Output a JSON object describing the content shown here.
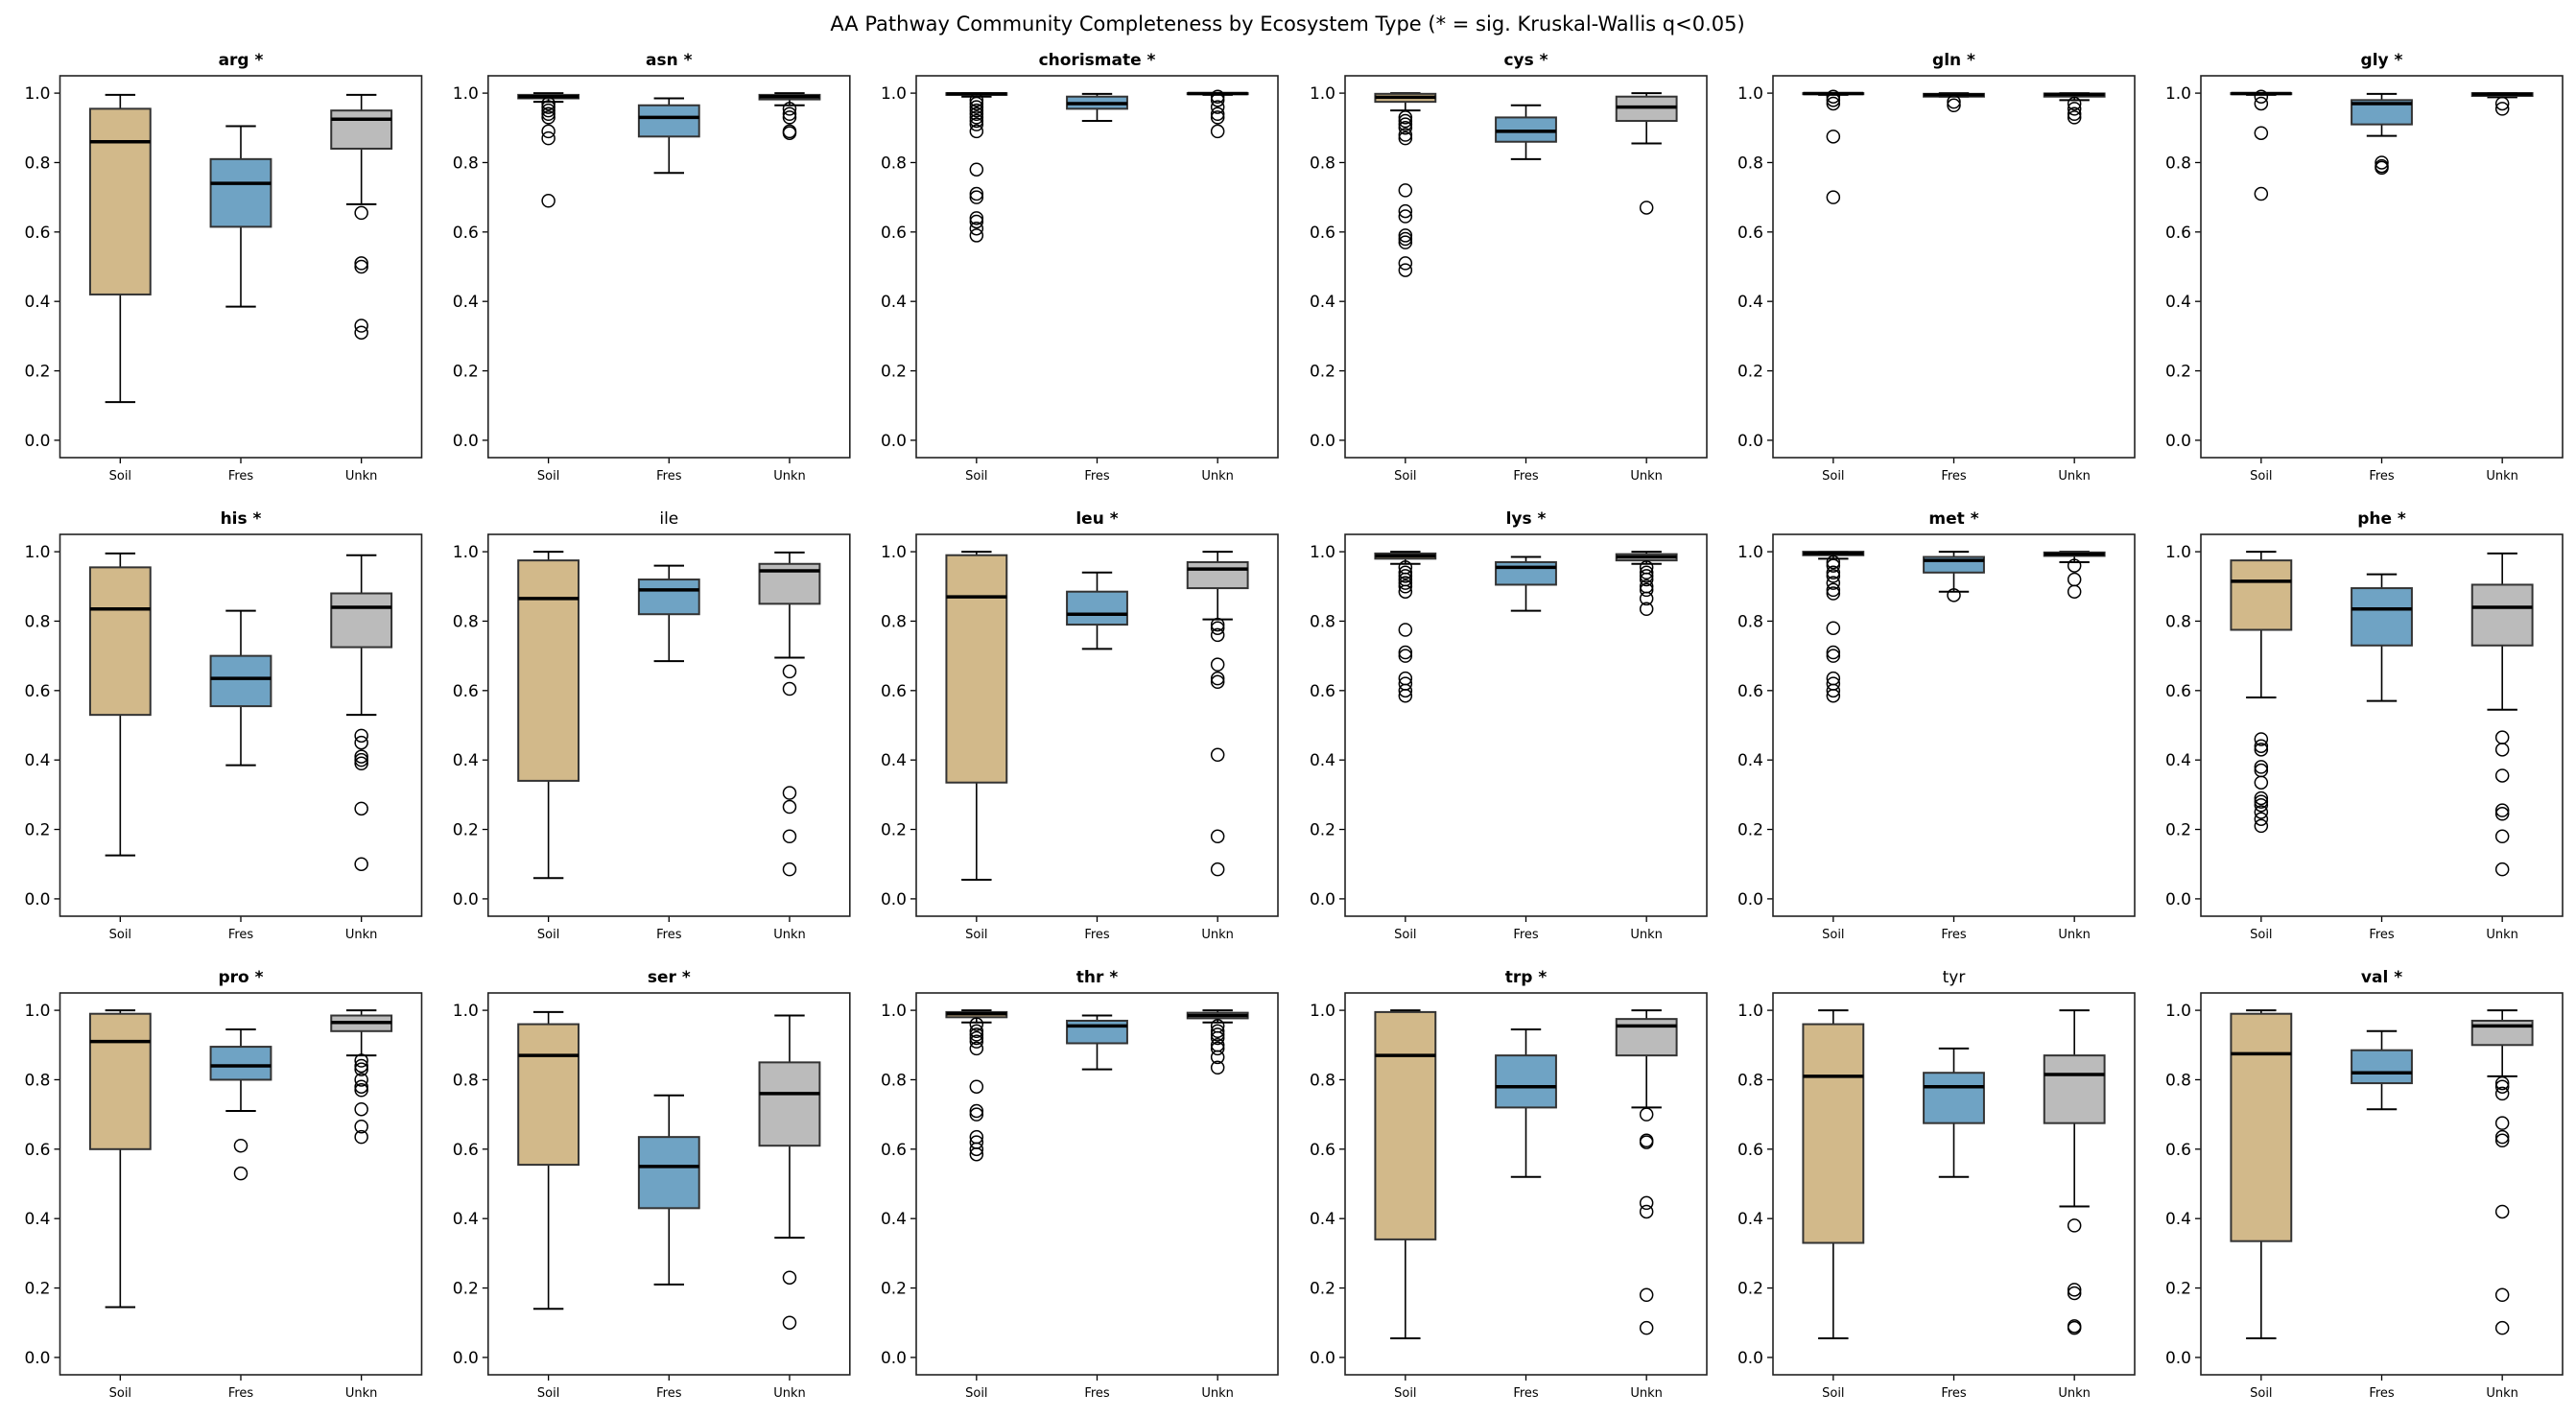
{
  "chart_data": {
    "type": "box",
    "title": "AA Pathway Community Completeness by Ecosystem Type (* = sig. Kruskal-Wallis q<0.05)",
    "categories": [
      "Soil",
      "Fres",
      "Unkn"
    ],
    "colors": [
      "#D2B98A",
      "#6FA3C4",
      "#BBBBBB"
    ],
    "ylim": [
      -0.05,
      1.05
    ],
    "yticks": [
      "0.0",
      "0.2",
      "0.4",
      "0.6",
      "0.8",
      "1.0"
    ],
    "grid": false,
    "panels": [
      {
        "title": "arg *",
        "significant": true,
        "groups": [
          {
            "whislo": 0.11,
            "q1": 0.42,
            "med": 0.86,
            "q3": 0.955,
            "whishi": 0.995,
            "fliers": []
          },
          {
            "whislo": 0.385,
            "q1": 0.615,
            "med": 0.74,
            "q3": 0.81,
            "whishi": 0.905,
            "fliers": []
          },
          {
            "whislo": 0.68,
            "q1": 0.84,
            "med": 0.925,
            "q3": 0.95,
            "whishi": 0.995,
            "fliers": [
              0.655,
              0.51,
              0.5,
              0.33,
              0.31
            ]
          }
        ]
      },
      {
        "title": "asn *",
        "significant": true,
        "groups": [
          {
            "whislo": 0.975,
            "q1": 0.985,
            "med": 0.99,
            "q3": 0.995,
            "whishi": 1.0,
            "fliers": [
              0.97,
              0.96,
              0.95,
              0.94,
              0.93,
              0.89,
              0.87,
              0.69
            ]
          },
          {
            "whislo": 0.77,
            "q1": 0.875,
            "med": 0.93,
            "q3": 0.965,
            "whishi": 0.985,
            "fliers": []
          },
          {
            "whislo": 0.965,
            "q1": 0.982,
            "med": 0.99,
            "q3": 0.995,
            "whishi": 1.0,
            "fliers": [
              0.955,
              0.94,
              0.93,
              0.89,
              0.885
            ]
          }
        ]
      },
      {
        "title": "chorismate *",
        "significant": true,
        "groups": [
          {
            "whislo": 0.99,
            "q1": 0.995,
            "med": 0.998,
            "q3": 1.0,
            "whishi": 1.0,
            "fliers": [
              0.98,
              0.97,
              0.96,
              0.95,
              0.94,
              0.93,
              0.92,
              0.91,
              0.89,
              0.78,
              0.71,
              0.7,
              0.64,
              0.63,
              0.61,
              0.59
            ]
          },
          {
            "whislo": 0.92,
            "q1": 0.955,
            "med": 0.97,
            "q3": 0.99,
            "whishi": 0.998,
            "fliers": []
          },
          {
            "whislo": 0.995,
            "q1": 0.997,
            "med": 0.999,
            "q3": 1.0,
            "whishi": 1.0,
            "fliers": [
              0.99,
              0.98,
              0.96,
              0.94,
              0.93,
              0.89
            ]
          }
        ]
      },
      {
        "title": "cys *",
        "significant": true,
        "groups": [
          {
            "whislo": 0.95,
            "q1": 0.975,
            "med": 0.988,
            "q3": 0.998,
            "whishi": 1.0,
            "fliers": [
              0.93,
              0.92,
              0.91,
              0.9,
              0.88,
              0.87,
              0.72,
              0.66,
              0.645,
              0.59,
              0.58,
              0.57,
              0.51,
              0.49
            ]
          },
          {
            "whislo": 0.81,
            "q1": 0.86,
            "med": 0.89,
            "q3": 0.93,
            "whishi": 0.965,
            "fliers": []
          },
          {
            "whislo": 0.855,
            "q1": 0.92,
            "med": 0.96,
            "q3": 0.99,
            "whishi": 1.0,
            "fliers": [
              0.67
            ]
          }
        ]
      },
      {
        "title": "gln *",
        "significant": true,
        "groups": [
          {
            "whislo": 0.995,
            "q1": 0.997,
            "med": 0.999,
            "q3": 1.0,
            "whishi": 1.0,
            "fliers": [
              0.99,
              0.98,
              0.97,
              0.875,
              0.7
            ]
          },
          {
            "whislo": 0.99,
            "q1": 0.99,
            "med": 0.995,
            "q3": 0.998,
            "whishi": 1.0,
            "fliers": [
              0.975,
              0.965
            ]
          },
          {
            "whislo": 0.98,
            "q1": 0.99,
            "med": 0.996,
            "q3": 0.999,
            "whishi": 1.0,
            "fliers": [
              0.97,
              0.955,
              0.94,
              0.93
            ]
          }
        ]
      },
      {
        "title": "gly *",
        "significant": true,
        "groups": [
          {
            "whislo": 0.995,
            "q1": 0.997,
            "med": 0.999,
            "q3": 1.0,
            "whishi": 1.0,
            "fliers": [
              0.99,
              0.97,
              0.885,
              0.71
            ]
          },
          {
            "whislo": 0.877,
            "q1": 0.91,
            "med": 0.97,
            "q3": 0.98,
            "whishi": 0.998,
            "fliers": [
              0.8,
              0.79,
              0.785
            ]
          },
          {
            "whislo": 0.988,
            "q1": 0.992,
            "med": 0.997,
            "q3": 1.0,
            "whishi": 1.0,
            "fliers": [
              0.97,
              0.955
            ]
          }
        ]
      },
      {
        "title": "his *",
        "significant": true,
        "groups": [
          {
            "whislo": 0.125,
            "q1": 0.53,
            "med": 0.835,
            "q3": 0.955,
            "whishi": 0.995,
            "fliers": []
          },
          {
            "whislo": 0.385,
            "q1": 0.555,
            "med": 0.635,
            "q3": 0.7,
            "whishi": 0.83,
            "fliers": []
          },
          {
            "whislo": 0.53,
            "q1": 0.725,
            "med": 0.84,
            "q3": 0.88,
            "whishi": 0.99,
            "fliers": [
              0.47,
              0.45,
              0.41,
              0.4,
              0.39,
              0.26,
              0.1
            ]
          }
        ]
      },
      {
        "title": "ile",
        "significant": false,
        "groups": [
          {
            "whislo": 0.06,
            "q1": 0.34,
            "med": 0.865,
            "q3": 0.975,
            "whishi": 1.0,
            "fliers": []
          },
          {
            "whislo": 0.685,
            "q1": 0.82,
            "med": 0.89,
            "q3": 0.92,
            "whishi": 0.96,
            "fliers": []
          },
          {
            "whislo": 0.695,
            "q1": 0.85,
            "med": 0.945,
            "q3": 0.965,
            "whishi": 0.998,
            "fliers": [
              0.655,
              0.605,
              0.305,
              0.265,
              0.18,
              0.085
            ]
          }
        ]
      },
      {
        "title": "leu *",
        "significant": true,
        "groups": [
          {
            "whislo": 0.055,
            "q1": 0.335,
            "med": 0.87,
            "q3": 0.99,
            "whishi": 1.0,
            "fliers": []
          },
          {
            "whislo": 0.72,
            "q1": 0.79,
            "med": 0.82,
            "q3": 0.885,
            "whishi": 0.94,
            "fliers": []
          },
          {
            "whislo": 0.805,
            "q1": 0.895,
            "med": 0.95,
            "q3": 0.97,
            "whishi": 1.0,
            "fliers": [
              0.79,
              0.78,
              0.76,
              0.675,
              0.635,
              0.625,
              0.415,
              0.18,
              0.085
            ]
          }
        ]
      },
      {
        "title": "lys *",
        "significant": true,
        "groups": [
          {
            "whislo": 0.965,
            "q1": 0.98,
            "med": 0.988,
            "q3": 0.995,
            "whishi": 1.0,
            "fliers": [
              0.955,
              0.94,
              0.93,
              0.92,
              0.91,
              0.9,
              0.885,
              0.775,
              0.71,
              0.7,
              0.635,
              0.62,
              0.6,
              0.585
            ]
          },
          {
            "whislo": 0.83,
            "q1": 0.905,
            "med": 0.955,
            "q3": 0.97,
            "whishi": 0.985,
            "fliers": []
          },
          {
            "whislo": 0.965,
            "q1": 0.975,
            "med": 0.985,
            "q3": 0.993,
            "whishi": 1.0,
            "fliers": [
              0.955,
              0.94,
              0.93,
              0.92,
              0.9,
              0.89,
              0.865,
              0.835
            ]
          }
        ]
      },
      {
        "title": "met *",
        "significant": true,
        "groups": [
          {
            "whislo": 0.98,
            "q1": 0.99,
            "med": 0.995,
            "q3": 1.0,
            "whishi": 1.0,
            "fliers": [
              0.97,
              0.96,
              0.94,
              0.93,
              0.91,
              0.89,
              0.88,
              0.78,
              0.71,
              0.7,
              0.635,
              0.62,
              0.6,
              0.585
            ]
          },
          {
            "whislo": 0.885,
            "q1": 0.94,
            "med": 0.975,
            "q3": 0.985,
            "whishi": 1.0,
            "fliers": [
              0.875
            ]
          },
          {
            "whislo": 0.97,
            "q1": 0.988,
            "med": 0.993,
            "q3": 0.998,
            "whishi": 1.0,
            "fliers": [
              0.96,
              0.92,
              0.885
            ]
          }
        ]
      },
      {
        "title": "phe *",
        "significant": true,
        "groups": [
          {
            "whislo": 0.58,
            "q1": 0.775,
            "med": 0.915,
            "q3": 0.975,
            "whishi": 1.0,
            "fliers": [
              0.46,
              0.44,
              0.43,
              0.38,
              0.37,
              0.335,
              0.29,
              0.28,
              0.27,
              0.25,
              0.23,
              0.21
            ]
          },
          {
            "whislo": 0.57,
            "q1": 0.73,
            "med": 0.835,
            "q3": 0.895,
            "whishi": 0.935,
            "fliers": []
          },
          {
            "whislo": 0.545,
            "q1": 0.73,
            "med": 0.84,
            "q3": 0.905,
            "whishi": 0.995,
            "fliers": [
              0.465,
              0.43,
              0.355,
              0.255,
              0.245,
              0.18,
              0.085
            ]
          }
        ]
      },
      {
        "title": "pro *",
        "significant": true,
        "groups": [
          {
            "whislo": 0.145,
            "q1": 0.6,
            "med": 0.91,
            "q3": 0.99,
            "whishi": 1.0,
            "fliers": []
          },
          {
            "whislo": 0.71,
            "q1": 0.8,
            "med": 0.84,
            "q3": 0.895,
            "whishi": 0.945,
            "fliers": [
              0.61,
              0.53
            ]
          },
          {
            "whislo": 0.87,
            "q1": 0.94,
            "med": 0.965,
            "q3": 0.985,
            "whishi": 1.0,
            "fliers": [
              0.855,
              0.84,
              0.83,
              0.8,
              0.78,
              0.77,
              0.715,
              0.665,
              0.635
            ]
          }
        ]
      },
      {
        "title": "ser *",
        "significant": true,
        "groups": [
          {
            "whislo": 0.14,
            "q1": 0.555,
            "med": 0.87,
            "q3": 0.96,
            "whishi": 0.995,
            "fliers": []
          },
          {
            "whislo": 0.21,
            "q1": 0.43,
            "med": 0.55,
            "q3": 0.635,
            "whishi": 0.755,
            "fliers": []
          },
          {
            "whislo": 0.345,
            "q1": 0.61,
            "med": 0.76,
            "q3": 0.85,
            "whishi": 0.985,
            "fliers": [
              0.23,
              0.1
            ]
          }
        ]
      },
      {
        "title": "thr *",
        "significant": true,
        "groups": [
          {
            "whislo": 0.965,
            "q1": 0.98,
            "med": 0.99,
            "q3": 0.995,
            "whishi": 1.0,
            "fliers": [
              0.96,
              0.94,
              0.93,
              0.92,
              0.91,
              0.89,
              0.78,
              0.71,
              0.7,
              0.635,
              0.62,
              0.6,
              0.585
            ]
          },
          {
            "whislo": 0.83,
            "q1": 0.905,
            "med": 0.955,
            "q3": 0.97,
            "whishi": 0.985,
            "fliers": []
          },
          {
            "whislo": 0.965,
            "q1": 0.977,
            "med": 0.985,
            "q3": 0.993,
            "whishi": 1.0,
            "fliers": [
              0.955,
              0.94,
              0.93,
              0.92,
              0.9,
              0.89,
              0.865,
              0.835
            ]
          }
        ]
      },
      {
        "title": "trp *",
        "significant": true,
        "groups": [
          {
            "whislo": 0.055,
            "q1": 0.34,
            "med": 0.87,
            "q3": 0.995,
            "whishi": 1.0,
            "fliers": []
          },
          {
            "whislo": 0.52,
            "q1": 0.72,
            "med": 0.78,
            "q3": 0.87,
            "whishi": 0.945,
            "fliers": []
          },
          {
            "whislo": 0.72,
            "q1": 0.87,
            "med": 0.955,
            "q3": 0.975,
            "whishi": 1.0,
            "fliers": [
              0.7,
              0.625,
              0.62,
              0.445,
              0.42,
              0.18,
              0.085
            ]
          }
        ]
      },
      {
        "title": "tyr",
        "significant": false,
        "groups": [
          {
            "whislo": 0.055,
            "q1": 0.33,
            "med": 0.81,
            "q3": 0.96,
            "whishi": 1.0,
            "fliers": []
          },
          {
            "whislo": 0.52,
            "q1": 0.675,
            "med": 0.78,
            "q3": 0.82,
            "whishi": 0.89,
            "fliers": []
          },
          {
            "whislo": 0.435,
            "q1": 0.675,
            "med": 0.815,
            "q3": 0.87,
            "whishi": 1.0,
            "fliers": [
              0.38,
              0.195,
              0.185,
              0.09,
              0.085
            ]
          }
        ]
      },
      {
        "title": "val *",
        "significant": true,
        "groups": [
          {
            "whislo": 0.055,
            "q1": 0.335,
            "med": 0.875,
            "q3": 0.99,
            "whishi": 1.0,
            "fliers": []
          },
          {
            "whislo": 0.715,
            "q1": 0.79,
            "med": 0.82,
            "q3": 0.885,
            "whishi": 0.94,
            "fliers": []
          },
          {
            "whislo": 0.81,
            "q1": 0.9,
            "med": 0.955,
            "q3": 0.97,
            "whishi": 1.0,
            "fliers": [
              0.79,
              0.78,
              0.76,
              0.675,
              0.635,
              0.625,
              0.42,
              0.18,
              0.085
            ]
          }
        ]
      }
    ]
  }
}
